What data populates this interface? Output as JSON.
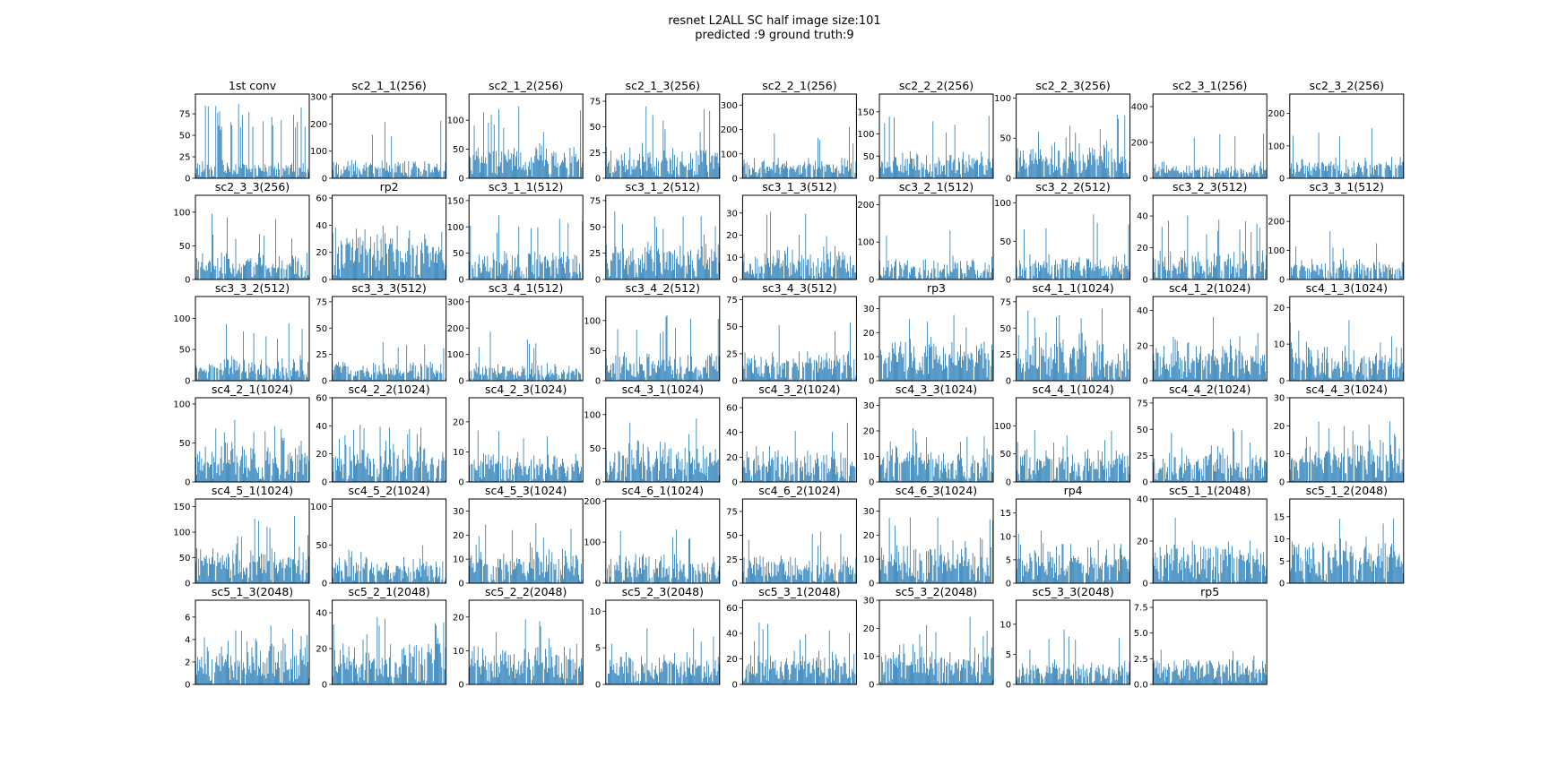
{
  "figure": {
    "title_line1": "resnet L2ALL SC half image size:101",
    "title_line2": "predicted :9 ground truth:9"
  },
  "colors": {
    "bar": "#1f77b4",
    "frame": "#000000",
    "background": "#ffffff"
  },
  "chart_data": [
    {
      "type": "bar",
      "title": "1st conv",
      "yticks": [
        0,
        25,
        50,
        75
      ],
      "ylim": [
        0,
        98
      ],
      "n": 64,
      "base": 14,
      "spread": 10,
      "peak_prob": 0.28,
      "peak": 80,
      "seed": 1
    },
    {
      "type": "bar",
      "title": "sc2_1_1(256)",
      "yticks": [
        0,
        100,
        200,
        300
      ],
      "ylim": [
        0,
        310
      ],
      "n": 256,
      "base": 45,
      "spread": 40,
      "peak_prob": 0.05,
      "peak": 210,
      "seed": 2
    },
    {
      "type": "bar",
      "title": "sc2_1_2(256)",
      "yticks": [
        0,
        50,
        100
      ],
      "ylim": [
        0,
        145
      ],
      "n": 256,
      "base": 40,
      "spread": 30,
      "peak_prob": 0.08,
      "peak": 110,
      "seed": 3
    },
    {
      "type": "bar",
      "title": "sc2_1_3(256)",
      "yticks": [
        0,
        25,
        50,
        75
      ],
      "ylim": [
        0,
        82
      ],
      "n": 256,
      "base": 22,
      "spread": 18,
      "peak_prob": 0.08,
      "peak": 62,
      "seed": 4
    },
    {
      "type": "bar",
      "title": "sc2_2_1(256)",
      "yticks": [
        0,
        100,
        200,
        300
      ],
      "ylim": [
        0,
        345
      ],
      "n": 256,
      "base": 55,
      "spread": 50,
      "peak_prob": 0.06,
      "peak": 200,
      "seed": 5
    },
    {
      "type": "bar",
      "title": "sc2_2_2(256)",
      "yticks": [
        0,
        50,
        100,
        150
      ],
      "ylim": [
        0,
        190
      ],
      "n": 256,
      "base": 40,
      "spread": 35,
      "peak_prob": 0.07,
      "peak": 130,
      "seed": 6
    },
    {
      "type": "bar",
      "title": "sc2_2_3(256)",
      "yticks": [
        0,
        50,
        100
      ],
      "ylim": [
        0,
        105
      ],
      "n": 256,
      "base": 30,
      "spread": 25,
      "peak_prob": 0.08,
      "peak": 70,
      "seed": 7
    },
    {
      "type": "bar",
      "title": "sc2_3_1(256)",
      "yticks": [
        0,
        200,
        400
      ],
      "ylim": [
        0,
        470
      ],
      "n": 256,
      "base": 60,
      "spread": 60,
      "peak_prob": 0.05,
      "peak": 280,
      "seed": 8
    },
    {
      "type": "bar",
      "title": "sc2_3_2(256)",
      "yticks": [
        0,
        100,
        200
      ],
      "ylim": [
        0,
        260
      ],
      "n": 256,
      "base": 45,
      "spread": 40,
      "peak_prob": 0.05,
      "peak": 150,
      "seed": 9
    },
    {
      "type": "bar",
      "title": "sc2_3_3(256)",
      "yticks": [
        0,
        50,
        100
      ],
      "ylim": [
        0,
        125
      ],
      "n": 256,
      "base": 25,
      "spread": 25,
      "peak_prob": 0.07,
      "peak": 85,
      "seed": 10
    },
    {
      "type": "bar",
      "title": "rp2",
      "yticks": [
        0,
        20,
        40,
        60
      ],
      "ylim": [
        0,
        62
      ],
      "n": 256,
      "base": 25,
      "spread": 15,
      "peak_prob": 0.06,
      "peak": 42,
      "seed": 11
    },
    {
      "type": "bar",
      "title": "sc3_1_1(512)",
      "yticks": [
        0,
        50,
        100,
        150
      ],
      "ylim": [
        0,
        160
      ],
      "n": 512,
      "base": 35,
      "spread": 35,
      "peak_prob": 0.06,
      "peak": 115,
      "seed": 12
    },
    {
      "type": "bar",
      "title": "sc3_1_2(512)",
      "yticks": [
        0,
        25,
        50,
        75
      ],
      "ylim": [
        0,
        80
      ],
      "n": 512,
      "base": 25,
      "spread": 20,
      "peak_prob": 0.07,
      "peak": 58,
      "seed": 13
    },
    {
      "type": "bar",
      "title": "sc3_1_3(512)",
      "yticks": [
        0,
        10,
        20,
        30
      ],
      "ylim": [
        0,
        38
      ],
      "n": 512,
      "base": 10,
      "spread": 8,
      "peak_prob": 0.07,
      "peak": 27,
      "seed": 14
    },
    {
      "type": "bar",
      "title": "sc3_2_1(512)",
      "yticks": [
        0,
        100,
        200
      ],
      "ylim": [
        0,
        225
      ],
      "n": 512,
      "base": 40,
      "spread": 40,
      "peak_prob": 0.05,
      "peak": 140,
      "seed": 15
    },
    {
      "type": "bar",
      "title": "sc3_2_2(512)",
      "yticks": [
        0,
        50,
        100
      ],
      "ylim": [
        0,
        110
      ],
      "n": 512,
      "base": 22,
      "spread": 22,
      "peak_prob": 0.06,
      "peak": 75,
      "seed": 16
    },
    {
      "type": "bar",
      "title": "sc3_2_3(512)",
      "yticks": [
        0,
        20,
        40
      ],
      "ylim": [
        0,
        53
      ],
      "n": 512,
      "base": 12,
      "spread": 12,
      "peak_prob": 0.07,
      "peak": 36,
      "seed": 17
    },
    {
      "type": "bar",
      "title": "sc3_3_1(512)",
      "yticks": [
        0,
        100,
        200
      ],
      "ylim": [
        0,
        290
      ],
      "n": 512,
      "base": 45,
      "spread": 45,
      "peak_prob": 0.05,
      "peak": 150,
      "seed": 18
    },
    {
      "type": "bar",
      "title": "sc3_3_2(512)",
      "yticks": [
        0,
        50,
        100
      ],
      "ylim": [
        0,
        135
      ],
      "n": 512,
      "base": 25,
      "spread": 25,
      "peak_prob": 0.06,
      "peak": 85,
      "seed": 19
    },
    {
      "type": "bar",
      "title": "sc3_3_3(512)",
      "yticks": [
        0,
        25,
        50,
        75
      ],
      "ylim": [
        0,
        80
      ],
      "n": 512,
      "base": 12,
      "spread": 12,
      "peak_prob": 0.05,
      "peak": 35,
      "seed": 20
    },
    {
      "type": "bar",
      "title": "sc3_4_1(512)",
      "yticks": [
        0,
        100,
        200,
        300
      ],
      "ylim": [
        0,
        320
      ],
      "n": 512,
      "base": 40,
      "spread": 45,
      "peak_prob": 0.05,
      "peak": 170,
      "seed": 21
    },
    {
      "type": "bar",
      "title": "sc3_4_2(512)",
      "yticks": [
        0,
        50,
        100
      ],
      "ylim": [
        0,
        140
      ],
      "n": 512,
      "base": 30,
      "spread": 28,
      "peak_prob": 0.06,
      "peak": 95,
      "seed": 22
    },
    {
      "type": "bar",
      "title": "sc3_4_3(512)",
      "yticks": [
        0,
        25,
        50,
        75
      ],
      "ylim": [
        0,
        78
      ],
      "n": 512,
      "base": 18,
      "spread": 18,
      "peak_prob": 0.05,
      "peak": 50,
      "seed": 23
    },
    {
      "type": "bar",
      "title": "rp3",
      "yticks": [
        0,
        10,
        20,
        30
      ],
      "ylim": [
        0,
        35
      ],
      "n": 512,
      "base": 12,
      "spread": 8,
      "peak_prob": 0.06,
      "peak": 24,
      "seed": 24
    },
    {
      "type": "bar",
      "title": "sc4_1_1(1024)",
      "yticks": [
        0,
        25,
        50,
        75
      ],
      "ylim": [
        0,
        80
      ],
      "n": 1024,
      "base": 30,
      "spread": 25,
      "peak_prob": 0.06,
      "peak": 62,
      "seed": 25
    },
    {
      "type": "bar",
      "title": "sc4_1_2(1024)",
      "yticks": [
        0,
        20,
        40
      ],
      "ylim": [
        0,
        48
      ],
      "n": 1024,
      "base": 15,
      "spread": 12,
      "peak_prob": 0.05,
      "peak": 32,
      "seed": 26
    },
    {
      "type": "bar",
      "title": "sc4_1_3(1024)",
      "yticks": [
        0,
        10,
        20
      ],
      "ylim": [
        0,
        23
      ],
      "n": 1024,
      "base": 7,
      "spread": 6,
      "peak_prob": 0.05,
      "peak": 15,
      "seed": 27
    },
    {
      "type": "bar",
      "title": "sc4_2_1(1024)",
      "yticks": [
        0,
        50,
        100
      ],
      "ylim": [
        0,
        108
      ],
      "n": 1024,
      "base": 35,
      "spread": 30,
      "peak_prob": 0.05,
      "peak": 75,
      "seed": 28
    },
    {
      "type": "bar",
      "title": "sc4_2_2(1024)",
      "yticks": [
        0,
        20,
        40,
        60
      ],
      "ylim": [
        0,
        60
      ],
      "n": 1024,
      "base": 18,
      "spread": 18,
      "peak_prob": 0.06,
      "peak": 42,
      "seed": 29
    },
    {
      "type": "bar",
      "title": "sc4_2_3(1024)",
      "yticks": [
        0,
        10,
        20
      ],
      "ylim": [
        0,
        28
      ],
      "n": 1024,
      "base": 7,
      "spread": 6,
      "peak_prob": 0.05,
      "peak": 16,
      "seed": 30
    },
    {
      "type": "bar",
      "title": "sc4_3_1(1024)",
      "yticks": [
        0,
        50,
        100
      ],
      "ylim": [
        0,
        125
      ],
      "n": 1024,
      "base": 40,
      "spread": 35,
      "peak_prob": 0.05,
      "peak": 85,
      "seed": 31
    },
    {
      "type": "bar",
      "title": "sc4_3_2(1024)",
      "yticks": [
        0,
        20,
        40,
        60
      ],
      "ylim": [
        0,
        68
      ],
      "n": 1024,
      "base": 18,
      "spread": 18,
      "peak_prob": 0.05,
      "peak": 42,
      "seed": 32
    },
    {
      "type": "bar",
      "title": "sc4_3_3(1024)",
      "yticks": [
        0,
        10,
        20,
        30
      ],
      "ylim": [
        0,
        33
      ],
      "n": 1024,
      "base": 9,
      "spread": 8,
      "peak_prob": 0.05,
      "peak": 20,
      "seed": 33
    },
    {
      "type": "bar",
      "title": "sc4_4_1(1024)",
      "yticks": [
        0,
        50,
        100
      ],
      "ylim": [
        0,
        150
      ],
      "n": 1024,
      "base": 38,
      "spread": 35,
      "peak_prob": 0.05,
      "peak": 85,
      "seed": 34
    },
    {
      "type": "bar",
      "title": "sc4_4_2(1024)",
      "yticks": [
        0,
        25,
        50,
        75
      ],
      "ylim": [
        0,
        80
      ],
      "n": 1024,
      "base": 20,
      "spread": 18,
      "peak_prob": 0.05,
      "peak": 45,
      "seed": 35
    },
    {
      "type": "bar",
      "title": "sc4_4_3(1024)",
      "yticks": [
        0,
        10,
        20,
        30
      ],
      "ylim": [
        0,
        30
      ],
      "n": 1024,
      "base": 10,
      "spread": 8,
      "peak_prob": 0.05,
      "peak": 21,
      "seed": 36
    },
    {
      "type": "bar",
      "title": "sc4_5_1(1024)",
      "yticks": [
        0,
        50,
        100,
        150
      ],
      "ylim": [
        0,
        165
      ],
      "n": 1024,
      "base": 50,
      "spread": 40,
      "peak_prob": 0.05,
      "peak": 115,
      "seed": 37
    },
    {
      "type": "bar",
      "title": "sc4_5_2(1024)",
      "yticks": [
        0,
        50,
        100
      ],
      "ylim": [
        0,
        110
      ],
      "n": 1024,
      "base": 22,
      "spread": 18,
      "peak_prob": 0.05,
      "peak": 45,
      "seed": 38
    },
    {
      "type": "bar",
      "title": "sc4_5_3(1024)",
      "yticks": [
        0,
        10,
        20,
        30
      ],
      "ylim": [
        0,
        35
      ],
      "n": 1024,
      "base": 10,
      "spread": 9,
      "peak_prob": 0.05,
      "peak": 22,
      "seed": 39
    },
    {
      "type": "bar",
      "title": "sc4_6_1(1024)",
      "yticks": [
        0,
        100,
        200
      ],
      "ylim": [
        0,
        205
      ],
      "n": 1024,
      "base": 45,
      "spread": 45,
      "peak_prob": 0.05,
      "peak": 120,
      "seed": 40
    },
    {
      "type": "bar",
      "title": "sc4_6_2(1024)",
      "yticks": [
        0,
        25,
        50,
        75
      ],
      "ylim": [
        0,
        88
      ],
      "n": 1024,
      "base": 20,
      "spread": 18,
      "peak_prob": 0.05,
      "peak": 50,
      "seed": 41
    },
    {
      "type": "bar",
      "title": "sc4_6_3(1024)",
      "yticks": [
        0,
        10,
        20,
        30
      ],
      "ylim": [
        0,
        35
      ],
      "n": 1024,
      "base": 11,
      "spread": 9,
      "peak_prob": 0.05,
      "peak": 24,
      "seed": 42
    },
    {
      "type": "bar",
      "title": "rp4",
      "yticks": [
        0,
        5,
        10,
        15
      ],
      "ylim": [
        0,
        18
      ],
      "n": 1024,
      "base": 6,
      "spread": 4,
      "peak_prob": 0.05,
      "peak": 11,
      "seed": 43
    },
    {
      "type": "bar",
      "title": "sc5_1_1(2048)",
      "yticks": [
        0,
        20,
        40
      ],
      "ylim": [
        0,
        40
      ],
      "n": 2048,
      "base": 14,
      "spread": 12,
      "peak_prob": 0.06,
      "peak": 28,
      "seed": 44
    },
    {
      "type": "bar",
      "title": "sc5_1_2(2048)",
      "yticks": [
        0,
        5,
        10,
        15
      ],
      "ylim": [
        0,
        19
      ],
      "n": 2048,
      "base": 7,
      "spread": 5,
      "peak_prob": 0.06,
      "peak": 13,
      "seed": 45
    },
    {
      "type": "bar",
      "title": "sc5_1_3(2048)",
      "yticks": [
        0,
        2,
        4,
        6
      ],
      "ylim": [
        0,
        7.5
      ],
      "n": 2048,
      "base": 2.5,
      "spread": 2,
      "peak_prob": 0.06,
      "peak": 5,
      "seed": 46
    },
    {
      "type": "bar",
      "title": "sc5_2_1(2048)",
      "yticks": [
        0,
        20,
        40
      ],
      "ylim": [
        0,
        47
      ],
      "n": 2048,
      "base": 16,
      "spread": 12,
      "peak_prob": 0.06,
      "peak": 34,
      "seed": 47
    },
    {
      "type": "bar",
      "title": "sc5_2_2(2048)",
      "yticks": [
        0,
        10,
        20
      ],
      "ylim": [
        0,
        25
      ],
      "n": 2048,
      "base": 8,
      "spread": 7,
      "peak_prob": 0.06,
      "peak": 17,
      "seed": 48
    },
    {
      "type": "bar",
      "title": "sc5_2_3(2048)",
      "yticks": [
        0,
        5,
        10
      ],
      "ylim": [
        0,
        11.5
      ],
      "n": 2048,
      "base": 3,
      "spread": 3,
      "peak_prob": 0.06,
      "peak": 7,
      "seed": 49
    },
    {
      "type": "bar",
      "title": "sc5_3_1(2048)",
      "yticks": [
        0,
        20,
        40,
        60
      ],
      "ylim": [
        0,
        66
      ],
      "n": 2048,
      "base": 18,
      "spread": 15,
      "peak_prob": 0.06,
      "peak": 45,
      "seed": 50
    },
    {
      "type": "bar",
      "title": "sc5_3_2(2048)",
      "yticks": [
        0,
        10,
        20,
        30
      ],
      "ylim": [
        0,
        30
      ],
      "n": 2048,
      "base": 9,
      "spread": 8,
      "peak_prob": 0.06,
      "peak": 21,
      "seed": 51
    },
    {
      "type": "bar",
      "title": "sc5_3_3(2048)",
      "yticks": [
        0,
        5,
        10
      ],
      "ylim": [
        0,
        14
      ],
      "n": 2048,
      "base": 2.5,
      "spread": 2.5,
      "peak_prob": 0.05,
      "peak": 8,
      "seed": 52
    },
    {
      "type": "bar",
      "title": "rp5",
      "yticks": [
        0.0,
        2.5,
        5.0,
        7.5
      ],
      "ytick_labels": [
        "0.0",
        "2.5",
        "5.0",
        "7.5"
      ],
      "ylim": [
        0,
        8.2
      ],
      "n": 2048,
      "base": 2.1,
      "spread": 0.8,
      "peak_prob": 0.05,
      "peak": 3.2,
      "seed": 53
    }
  ]
}
